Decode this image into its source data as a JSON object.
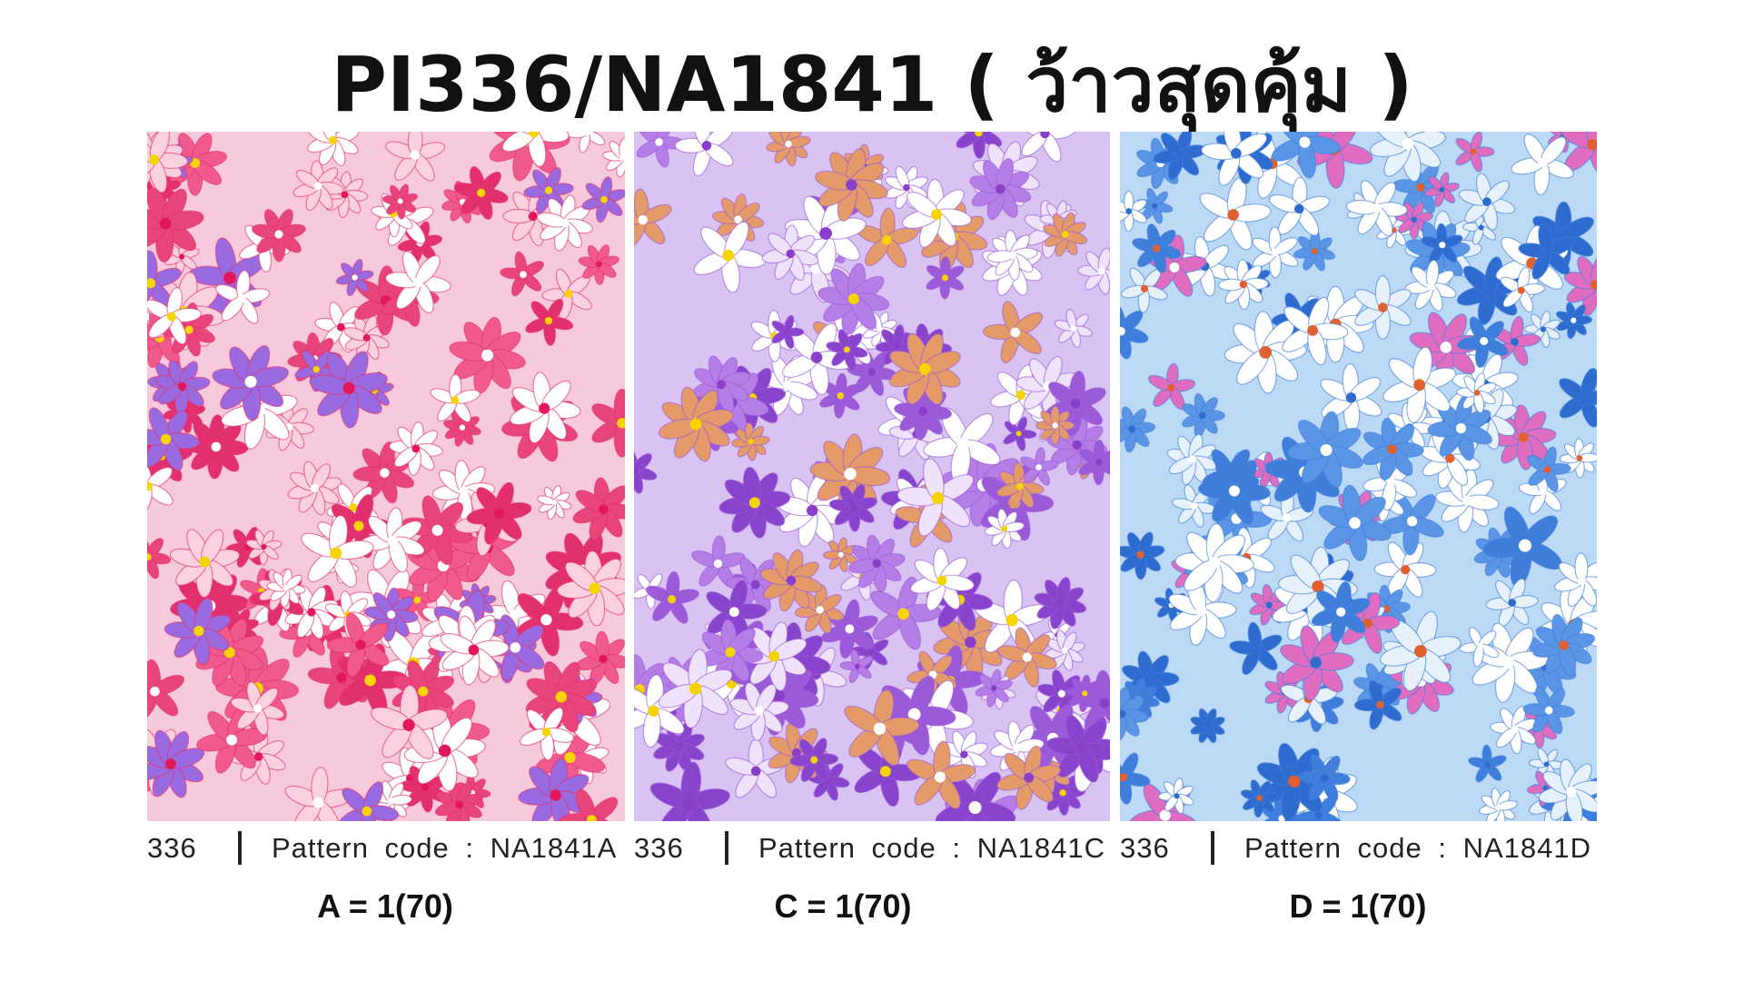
{
  "title": "PI336/NA1841 ( ว้าวสุดคุ้ม )",
  "panels": [
    {
      "code": "336",
      "pattern": "Pattern code : NA1841A",
      "price": "A = 1(70)"
    },
    {
      "code": "336",
      "pattern": "Pattern code : NA1841C",
      "price": "C = 1(70)"
    },
    {
      "code": "336",
      "pattern": "Pattern code : NA1841D",
      "price": "D = 1(70)"
    }
  ]
}
